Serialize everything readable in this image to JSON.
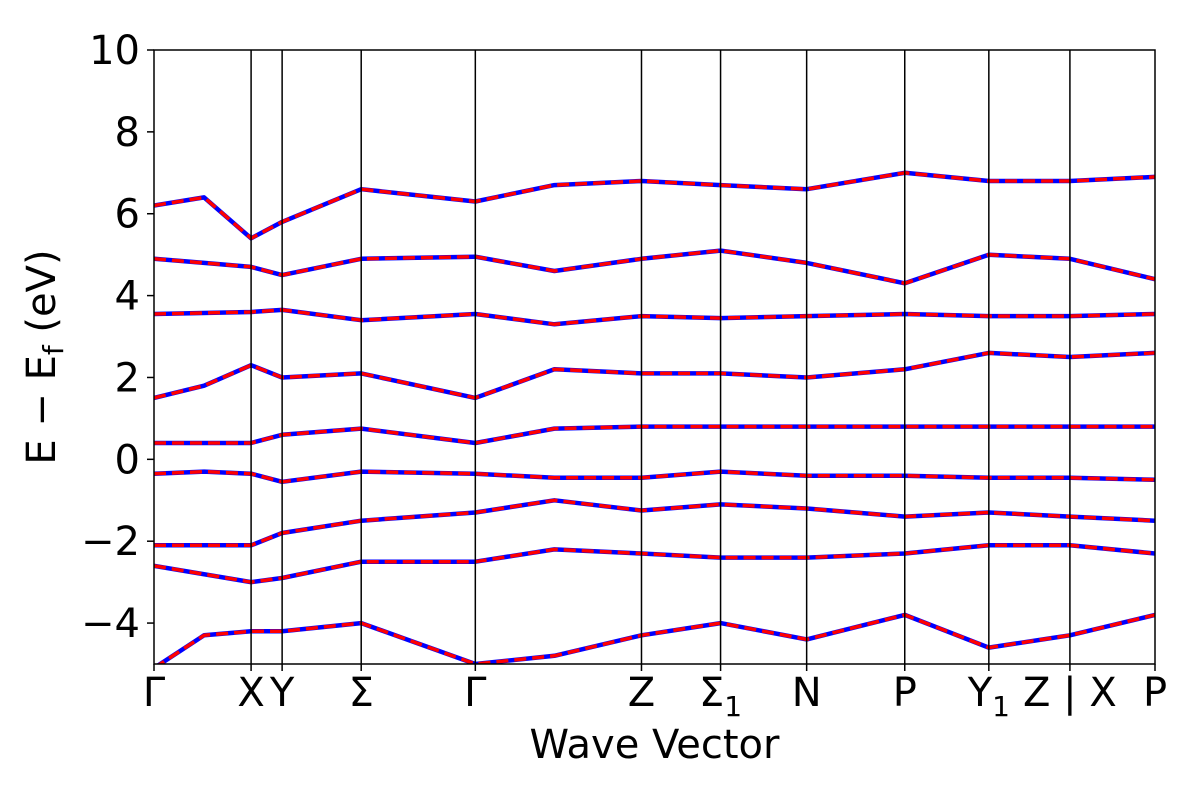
{
  "chart_data": {
    "type": "line",
    "title": "",
    "xlabel": "Wave Vector",
    "ylabel": "E − E",
    "ylabel_sub": "f",
    "ylabel_unit": " (eV)",
    "ylim": [
      -5,
      10
    ],
    "yticks": [
      -4,
      -2,
      0,
      2,
      4,
      6,
      8,
      10
    ],
    "ytick_labels": [
      "−4",
      "−2",
      "0",
      "2",
      "4",
      "6",
      "8",
      "10"
    ],
    "xlim": [
      0,
      1
    ],
    "high_symmetry_points": [
      {
        "label": "Γ",
        "x": 0.0
      },
      {
        "label": "X",
        "x": 0.097
      },
      {
        "label": "Y",
        "x": 0.128
      },
      {
        "label": "Σ",
        "x": 0.207
      },
      {
        "label": "Γ",
        "x": 0.321
      },
      {
        "label": "Z",
        "x": 0.487
      },
      {
        "label": "Σ",
        "sub": "1",
        "x": 0.566
      },
      {
        "label": "N",
        "x": 0.652
      },
      {
        "label": "P",
        "x": 0.75
      },
      {
        "label": "Y",
        "sub": "1",
        "x": 0.834
      },
      {
        "label": "Z | X",
        "x": 0.915
      },
      {
        "label": "P",
        "x": 1.0
      }
    ],
    "series": [
      {
        "color": "#0000ff",
        "style": "solid",
        "bands": [
          [
            [
              0,
              -0.35
            ],
            [
              0.05,
              -0.3
            ],
            [
              0.097,
              -0.35
            ],
            [
              0.128,
              -0.55
            ],
            [
              0.207,
              -0.3
            ],
            [
              0.321,
              -0.35
            ],
            [
              0.4,
              -0.45
            ],
            [
              0.487,
              -0.45
            ],
            [
              0.566,
              -0.3
            ],
            [
              0.652,
              -0.4
            ],
            [
              0.75,
              -0.4
            ],
            [
              0.834,
              -0.45
            ],
            [
              0.915,
              -0.45
            ],
            [
              1,
              -0.5
            ]
          ],
          [
            [
              0,
              0.4
            ],
            [
              0.097,
              0.4
            ],
            [
              0.128,
              0.6
            ],
            [
              0.207,
              0.75
            ],
            [
              0.321,
              0.4
            ],
            [
              0.4,
              0.75
            ],
            [
              0.487,
              0.8
            ],
            [
              0.566,
              0.8
            ],
            [
              0.652,
              0.8
            ],
            [
              0.75,
              0.8
            ],
            [
              0.834,
              0.8
            ],
            [
              0.915,
              0.8
            ],
            [
              1,
              0.8
            ]
          ],
          [
            [
              0,
              1.5
            ],
            [
              0.05,
              1.8
            ],
            [
              0.097,
              2.3
            ],
            [
              0.128,
              2.0
            ],
            [
              0.207,
              2.1
            ],
            [
              0.321,
              1.5
            ],
            [
              0.4,
              2.2
            ],
            [
              0.487,
              2.1
            ],
            [
              0.566,
              2.1
            ],
            [
              0.652,
              2.0
            ],
            [
              0.75,
              2.2
            ],
            [
              0.834,
              2.6
            ],
            [
              0.915,
              2.5
            ],
            [
              1,
              2.6
            ]
          ],
          [
            [
              0,
              3.55
            ],
            [
              0.097,
              3.6
            ],
            [
              0.128,
              3.65
            ],
            [
              0.207,
              3.4
            ],
            [
              0.321,
              3.55
            ],
            [
              0.4,
              3.3
            ],
            [
              0.487,
              3.5
            ],
            [
              0.566,
              3.45
            ],
            [
              0.652,
              3.5
            ],
            [
              0.75,
              3.55
            ],
            [
              0.834,
              3.5
            ],
            [
              0.915,
              3.5
            ],
            [
              1,
              3.55
            ]
          ],
          [
            [
              0,
              4.9
            ],
            [
              0.05,
              4.8
            ],
            [
              0.097,
              4.7
            ],
            [
              0.128,
              4.5
            ],
            [
              0.207,
              4.9
            ],
            [
              0.321,
              4.95
            ],
            [
              0.4,
              4.6
            ],
            [
              0.487,
              4.9
            ],
            [
              0.566,
              5.1
            ],
            [
              0.652,
              4.8
            ],
            [
              0.75,
              4.3
            ],
            [
              0.834,
              5.0
            ],
            [
              0.915,
              4.9
            ],
            [
              1,
              4.4
            ]
          ],
          [
            [
              0,
              6.2
            ],
            [
              0.05,
              6.4
            ],
            [
              0.097,
              5.4
            ],
            [
              0.128,
              5.8
            ],
            [
              0.207,
              6.6
            ],
            [
              0.321,
              6.3
            ],
            [
              0.4,
              6.7
            ],
            [
              0.487,
              6.8
            ],
            [
              0.566,
              6.7
            ],
            [
              0.652,
              6.6
            ],
            [
              0.75,
              7.0
            ],
            [
              0.834,
              6.8
            ],
            [
              0.915,
              6.8
            ],
            [
              1,
              6.9
            ]
          ],
          [
            [
              0,
              -2.1
            ],
            [
              0.097,
              -2.1
            ],
            [
              0.128,
              -1.8
            ],
            [
              0.207,
              -1.5
            ],
            [
              0.321,
              -1.3
            ],
            [
              0.4,
              -1.0
            ],
            [
              0.487,
              -1.25
            ],
            [
              0.566,
              -1.1
            ],
            [
              0.652,
              -1.2
            ],
            [
              0.75,
              -1.4
            ],
            [
              0.834,
              -1.3
            ],
            [
              0.915,
              -1.4
            ],
            [
              1,
              -1.5
            ]
          ],
          [
            [
              0,
              -2.6
            ],
            [
              0.097,
              -3.0
            ],
            [
              0.128,
              -2.9
            ],
            [
              0.207,
              -2.5
            ],
            [
              0.321,
              -2.5
            ],
            [
              0.4,
              -2.2
            ],
            [
              0.487,
              -2.3
            ],
            [
              0.566,
              -2.4
            ],
            [
              0.652,
              -2.4
            ],
            [
              0.75,
              -2.3
            ],
            [
              0.834,
              -2.1
            ],
            [
              0.915,
              -2.1
            ],
            [
              1,
              -2.3
            ]
          ],
          [
            [
              0,
              -5.1
            ],
            [
              0.05,
              -4.3
            ],
            [
              0.097,
              -4.2
            ],
            [
              0.128,
              -4.2
            ],
            [
              0.207,
              -4.0
            ],
            [
              0.321,
              -5.0
            ],
            [
              0.4,
              -4.8
            ],
            [
              0.487,
              -4.3
            ],
            [
              0.566,
              -4.0
            ],
            [
              0.652,
              -4.4
            ],
            [
              0.75,
              -3.8
            ],
            [
              0.834,
              -4.6
            ],
            [
              0.915,
              -4.3
            ],
            [
              1,
              -3.8
            ]
          ]
        ]
      },
      {
        "color": "#ff0000",
        "style": "dashed",
        "bands": [
          [
            [
              0,
              -0.35
            ],
            [
              0.05,
              -0.3
            ],
            [
              0.097,
              -0.35
            ],
            [
              0.128,
              -0.55
            ],
            [
              0.207,
              -0.3
            ],
            [
              0.321,
              -0.35
            ],
            [
              0.4,
              -0.45
            ],
            [
              0.487,
              -0.45
            ],
            [
              0.566,
              -0.3
            ],
            [
              0.652,
              -0.4
            ],
            [
              0.75,
              -0.4
            ],
            [
              0.834,
              -0.45
            ],
            [
              0.915,
              -0.45
            ],
            [
              1,
              -0.5
            ]
          ],
          [
            [
              0,
              0.4
            ],
            [
              0.097,
              0.4
            ],
            [
              0.128,
              0.6
            ],
            [
              0.207,
              0.75
            ],
            [
              0.321,
              0.4
            ],
            [
              0.4,
              0.75
            ],
            [
              0.487,
              0.8
            ],
            [
              0.566,
              0.8
            ],
            [
              0.652,
              0.8
            ],
            [
              0.75,
              0.8
            ],
            [
              0.834,
              0.8
            ],
            [
              0.915,
              0.8
            ],
            [
              1,
              0.8
            ]
          ],
          [
            [
              0,
              1.5
            ],
            [
              0.05,
              1.8
            ],
            [
              0.097,
              2.3
            ],
            [
              0.128,
              2.0
            ],
            [
              0.207,
              2.1
            ],
            [
              0.321,
              1.5
            ],
            [
              0.4,
              2.2
            ],
            [
              0.487,
              2.1
            ],
            [
              0.566,
              2.1
            ],
            [
              0.652,
              2.0
            ],
            [
              0.75,
              2.2
            ],
            [
              0.834,
              2.6
            ],
            [
              0.915,
              2.5
            ],
            [
              1,
              2.6
            ]
          ],
          [
            [
              0,
              3.55
            ],
            [
              0.097,
              3.6
            ],
            [
              0.128,
              3.65
            ],
            [
              0.207,
              3.4
            ],
            [
              0.321,
              3.55
            ],
            [
              0.4,
              3.3
            ],
            [
              0.487,
              3.5
            ],
            [
              0.566,
              3.45
            ],
            [
              0.652,
              3.5
            ],
            [
              0.75,
              3.55
            ],
            [
              0.834,
              3.5
            ],
            [
              0.915,
              3.5
            ],
            [
              1,
              3.55
            ]
          ],
          [
            [
              0,
              4.9
            ],
            [
              0.05,
              4.8
            ],
            [
              0.097,
              4.7
            ],
            [
              0.128,
              4.5
            ],
            [
              0.207,
              4.9
            ],
            [
              0.321,
              4.95
            ],
            [
              0.4,
              4.6
            ],
            [
              0.487,
              4.9
            ],
            [
              0.566,
              5.1
            ],
            [
              0.652,
              4.8
            ],
            [
              0.75,
              4.3
            ],
            [
              0.834,
              5.0
            ],
            [
              0.915,
              4.9
            ],
            [
              1,
              4.4
            ]
          ],
          [
            [
              0,
              6.2
            ],
            [
              0.05,
              6.4
            ],
            [
              0.097,
              5.4
            ],
            [
              0.128,
              5.8
            ],
            [
              0.207,
              6.6
            ],
            [
              0.321,
              6.3
            ],
            [
              0.4,
              6.7
            ],
            [
              0.487,
              6.8
            ],
            [
              0.566,
              6.7
            ],
            [
              0.652,
              6.6
            ],
            [
              0.75,
              7.0
            ],
            [
              0.834,
              6.8
            ],
            [
              0.915,
              6.8
            ],
            [
              1,
              6.9
            ]
          ],
          [
            [
              0,
              -2.1
            ],
            [
              0.097,
              -2.1
            ],
            [
              0.128,
              -1.8
            ],
            [
              0.207,
              -1.5
            ],
            [
              0.321,
              -1.3
            ],
            [
              0.4,
              -1.0
            ],
            [
              0.487,
              -1.25
            ],
            [
              0.566,
              -1.1
            ],
            [
              0.652,
              -1.2
            ],
            [
              0.75,
              -1.4
            ],
            [
              0.834,
              -1.3
            ],
            [
              0.915,
              -1.4
            ],
            [
              1,
              -1.5
            ]
          ],
          [
            [
              0,
              -2.6
            ],
            [
              0.097,
              -3.0
            ],
            [
              0.128,
              -2.9
            ],
            [
              0.207,
              -2.5
            ],
            [
              0.321,
              -2.5
            ],
            [
              0.4,
              -2.2
            ],
            [
              0.487,
              -2.3
            ],
            [
              0.566,
              -2.4
            ],
            [
              0.652,
              -2.4
            ],
            [
              0.75,
              -2.3
            ],
            [
              0.834,
              -2.1
            ],
            [
              0.915,
              -2.1
            ],
            [
              1,
              -2.3
            ]
          ],
          [
            [
              0,
              -5.1
            ],
            [
              0.05,
              -4.3
            ],
            [
              0.097,
              -4.2
            ],
            [
              0.128,
              -4.2
            ],
            [
              0.207,
              -4.0
            ],
            [
              0.321,
              -5.0
            ],
            [
              0.4,
              -4.8
            ],
            [
              0.487,
              -4.3
            ],
            [
              0.566,
              -4.0
            ],
            [
              0.652,
              -4.4
            ],
            [
              0.75,
              -3.8
            ],
            [
              0.834,
              -4.6
            ],
            [
              0.915,
              -4.3
            ],
            [
              1,
              -3.8
            ]
          ]
        ]
      }
    ],
    "colors": {
      "line_a": "#0000ff",
      "line_b": "#ff0000",
      "axis": "#000000"
    }
  }
}
